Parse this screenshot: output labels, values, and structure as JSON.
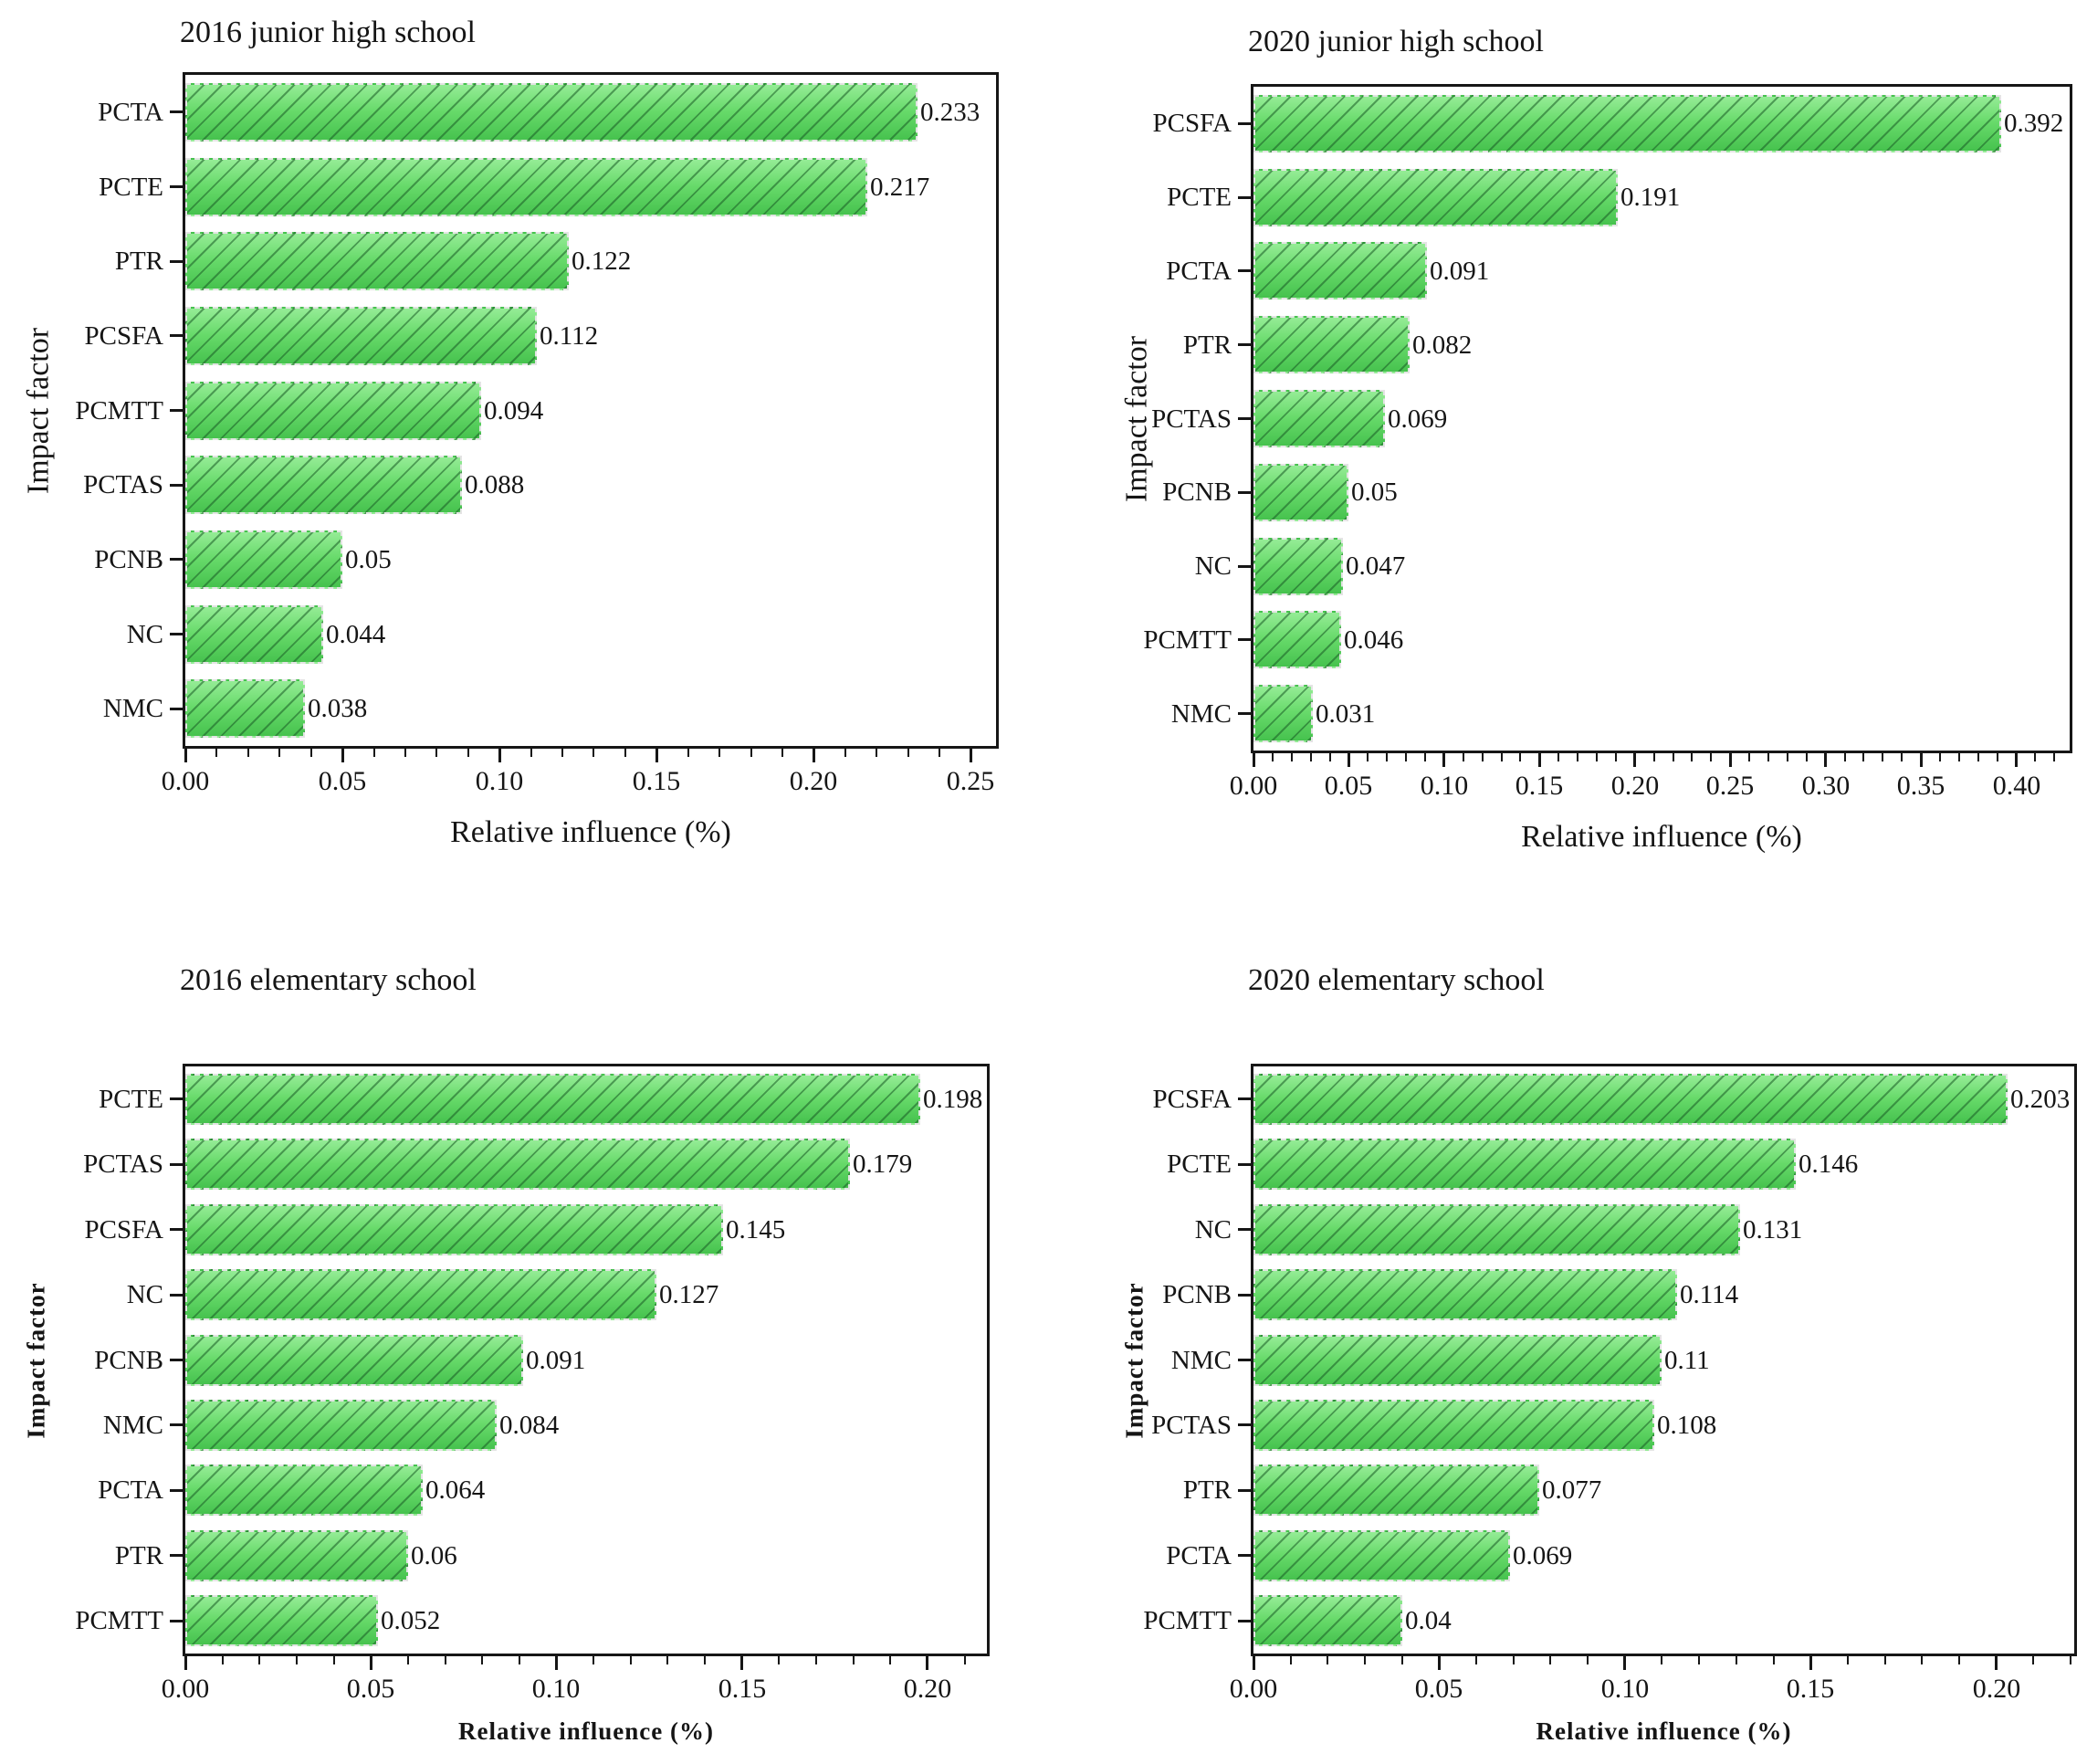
{
  "figure": {
    "x_axis_label": "Relative influence (%)",
    "y_axis_label": "Impact factor"
  },
  "chart_data": [
    {
      "type": "bar",
      "orientation": "horizontal",
      "title": "2016 junior high school",
      "xlabel": "Relative influence (%)",
      "ylabel": "Impact factor",
      "categories": [
        "PCTA",
        "PCTE",
        "PTR",
        "PCSFA",
        "PCMTT",
        "PCTAS",
        "PCNB",
        "NC",
        "NMC"
      ],
      "values": [
        0.233,
        0.217,
        0.122,
        0.112,
        0.094,
        0.088,
        0.05,
        0.044,
        0.038
      ],
      "value_labels": [
        "0.233",
        "0.217",
        "0.122",
        "0.112",
        "0.094",
        "0.088",
        "0.05",
        "0.044",
        "0.038"
      ],
      "xlim": [
        0,
        0.258
      ],
      "x_major_ticks": [
        0.0,
        0.05,
        0.1,
        0.15,
        0.2,
        0.25
      ],
      "x_tick_labels": [
        "0.00",
        "0.05",
        "0.10",
        "0.15",
        "0.20",
        "0.25"
      ],
      "x_minor_step": 0.01,
      "grid": false,
      "legend": null,
      "bar_color": "#5cd35f",
      "hatch": "/"
    },
    {
      "type": "bar",
      "orientation": "horizontal",
      "title": "2020 junior high school",
      "xlabel": "Relative influence (%)",
      "ylabel": "Impact factor",
      "categories": [
        "PCSFA",
        "PCTE",
        "PCTA",
        "PTR",
        "PCTAS",
        "PCNB",
        "NC",
        "PCMTT",
        "NMC"
      ],
      "values": [
        0.392,
        0.191,
        0.091,
        0.082,
        0.069,
        0.05,
        0.047,
        0.046,
        0.031
      ],
      "value_labels": [
        "0.392",
        "0.191",
        "0.091",
        "0.082",
        "0.069",
        "0.05",
        "0.047",
        "0.046",
        "0.031"
      ],
      "xlim": [
        0,
        0.428
      ],
      "x_major_ticks": [
        0.0,
        0.05,
        0.1,
        0.15,
        0.2,
        0.25,
        0.3,
        0.35,
        0.4
      ],
      "x_tick_labels": [
        "0.00",
        "0.05",
        "0.10",
        "0.15",
        "0.20",
        "0.25",
        "0.30",
        "0.35",
        "0.40"
      ],
      "x_minor_step": 0.01,
      "grid": false,
      "legend": null,
      "bar_color": "#5cd35f",
      "hatch": "/"
    },
    {
      "type": "bar",
      "orientation": "horizontal",
      "title": "2016 elementary school",
      "xlabel": "Relative influence (%)",
      "ylabel": "Impact factor",
      "categories": [
        "PCTE",
        "PCTAS",
        "PCSFA",
        "NC",
        "PCNB",
        "NMC",
        "PCTA",
        "PTR",
        "PCMTT"
      ],
      "values": [
        0.198,
        0.179,
        0.145,
        0.127,
        0.091,
        0.084,
        0.064,
        0.06,
        0.052
      ],
      "value_labels": [
        "0.198",
        "0.179",
        "0.145",
        "0.127",
        "0.091",
        "0.084",
        "0.064",
        "0.06",
        "0.052"
      ],
      "xlim": [
        0,
        0.216
      ],
      "x_major_ticks": [
        0.0,
        0.05,
        0.1,
        0.15,
        0.2
      ],
      "x_tick_labels": [
        "0.00",
        "0.05",
        "0.10",
        "0.15",
        "0.20"
      ],
      "x_minor_step": 0.01,
      "grid": false,
      "legend": null,
      "bar_color": "#5cd35f",
      "hatch": "/"
    },
    {
      "type": "bar",
      "orientation": "horizontal",
      "title": "2020 elementary school",
      "xlabel": "Relative influence (%)",
      "ylabel": "Impact factor",
      "categories": [
        "PCSFA",
        "PCTE",
        "NC",
        "PCNB",
        "NMC",
        "PCTAS",
        "PTR",
        "PCTA",
        "PCMTT"
      ],
      "values": [
        0.203,
        0.146,
        0.131,
        0.114,
        0.11,
        0.108,
        0.077,
        0.069,
        0.04
      ],
      "value_labels": [
        "0.203",
        "0.146",
        "0.131",
        "0.114",
        "0.11",
        "0.108",
        "0.077",
        "0.069",
        "0.04"
      ],
      "xlim": [
        0,
        0.221
      ],
      "x_major_ticks": [
        0.0,
        0.05,
        0.1,
        0.15,
        0.2
      ],
      "x_tick_labels": [
        "0.00",
        "0.05",
        "0.10",
        "0.15",
        "0.20"
      ],
      "x_minor_step": 0.01,
      "grid": false,
      "legend": null,
      "bar_color": "#5cd35f",
      "hatch": "/"
    }
  ],
  "colors": {
    "bar_gradient_top": "#95ec96",
    "bar_gradient_mid": "#67da6a",
    "bar_gradient_bottom": "#46c24e",
    "bar_hatch_line": "#1a5c26",
    "bar_border_dash": "#e4e4e4",
    "axis_frame": "#161616",
    "text": "#151515",
    "background": "#ffffff"
  }
}
